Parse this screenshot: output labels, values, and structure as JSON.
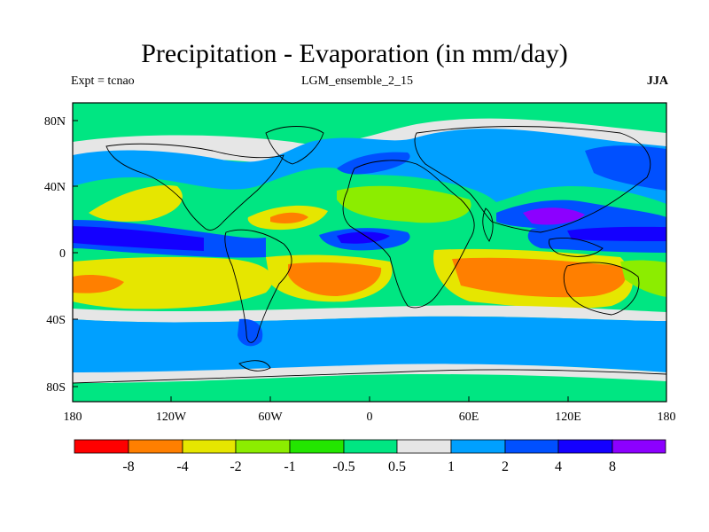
{
  "header": {
    "title": "Precipitation - Evaporation (in mm/day)",
    "left_label": "Expt = tcnao",
    "center_label": "LGM_ensemble_2_15",
    "right_label": "JJA"
  },
  "axes": {
    "lat_ticks": [
      "80N",
      "40N",
      "0",
      "40S",
      "80S"
    ],
    "lon_ticks": [
      "180",
      "120W",
      "60W",
      "0",
      "60E",
      "120E",
      "180"
    ]
  },
  "colorbar": {
    "colors": [
      "#ff0000",
      "#ff7f00",
      "#e6e600",
      "#8ced00",
      "#23e600",
      "#00e682",
      "#e6e6e6",
      "#00a0ff",
      "#0050ff",
      "#1400ff",
      "#8c00ff"
    ],
    "labels": [
      "-8",
      "-4",
      "-2",
      "-1",
      "-0.5",
      "0.5",
      "1",
      "2",
      "4",
      "8"
    ]
  },
  "colors": {
    "base": "#00e682",
    "very_negative": "#ff7f00",
    "negative": "#e6e600",
    "slightly_negative": "#8ced00",
    "neutral_low": "#23e600",
    "near_zero": "#e6e6e6",
    "positive": "#00a0ff",
    "strong_positive": "#0050ff",
    "very_positive": "#1400ff",
    "extreme_positive": "#8c00ff"
  }
}
